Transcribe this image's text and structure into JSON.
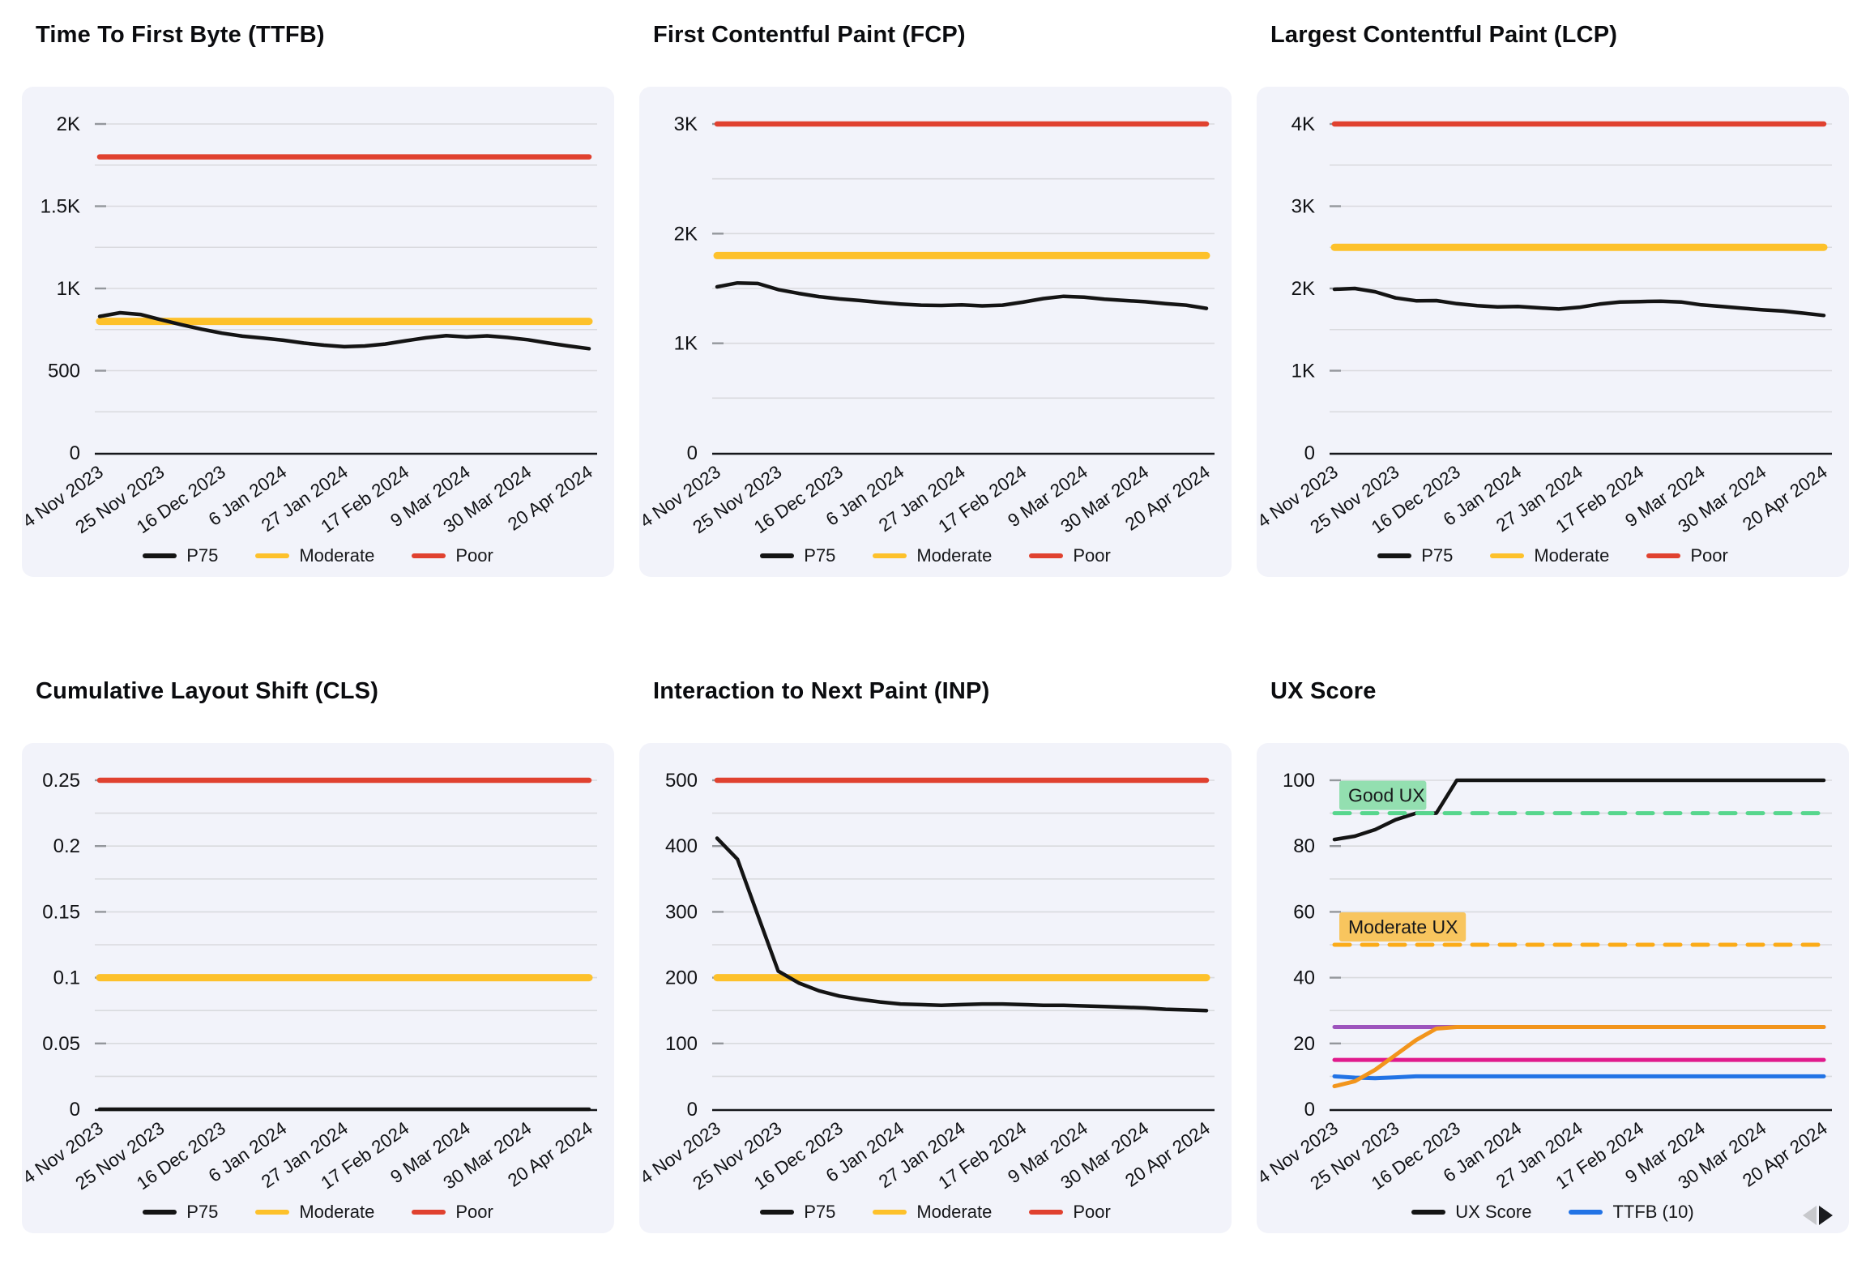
{
  "style": {
    "panel_bg": "#f2f3fa",
    "grid_color": "#d9dade",
    "tick_stub_color": "#94979c",
    "axis_color": "#15161a",
    "text_color": "#101114",
    "p75_color": "#141414",
    "moderate_color": "#fdc12b",
    "poor_color": "#e0412f"
  },
  "x_axis": {
    "tick_labels": [
      "4 Nov 2023",
      "25 Nov 2023",
      "16 Dec 2023",
      "6 Jan 2024",
      "27 Jan 2024",
      "17 Feb 2024",
      "9 Mar 2024",
      "30 Mar 2024",
      "20 Apr 2024"
    ],
    "tick_every": 3,
    "points_per_series": 25
  },
  "chart_data": [
    {
      "id": "ttfb",
      "type": "line",
      "title": "Time To First Byte (TTFB)",
      "y_max": 2000,
      "y_major_step": 500,
      "y_minor_step": 250,
      "y_tick_labels": [
        "0",
        "500",
        "1K",
        "1.5K",
        "2K"
      ],
      "thresholds": [
        {
          "name": "Moderate",
          "value": 800,
          "color": "#fdc12b",
          "width": 9
        },
        {
          "name": "Poor",
          "value": 1800,
          "color": "#e0412f",
          "width": 6.5
        }
      ],
      "series": [
        {
          "name": "P75",
          "color": "#141414",
          "width": 4.5,
          "values": [
            830,
            852,
            842,
            810,
            780,
            752,
            728,
            710,
            698,
            685,
            668,
            655,
            646,
            650,
            662,
            682,
            700,
            713,
            705,
            712,
            702,
            688,
            668,
            650,
            634
          ]
        }
      ],
      "legend": [
        {
          "label": "P75",
          "color": "#141414"
        },
        {
          "label": "Moderate",
          "color": "#fdc12b"
        },
        {
          "label": "Poor",
          "color": "#e0412f"
        }
      ]
    },
    {
      "id": "fcp",
      "type": "line",
      "title": "First Contentful Paint (FCP)",
      "y_max": 3000,
      "y_major_step": 1000,
      "y_minor_step": 500,
      "y_tick_labels": [
        "0",
        "1K",
        "2K",
        "3K"
      ],
      "thresholds": [
        {
          "name": "Moderate",
          "value": 1800,
          "color": "#fdc12b",
          "width": 9
        },
        {
          "name": "Poor",
          "value": 3000,
          "color": "#e0412f",
          "width": 6.5
        }
      ],
      "series": [
        {
          "name": "P75",
          "color": "#141414",
          "width": 4.5,
          "values": [
            1515,
            1550,
            1545,
            1490,
            1455,
            1425,
            1405,
            1390,
            1372,
            1358,
            1348,
            1345,
            1350,
            1341,
            1348,
            1375,
            1408,
            1428,
            1420,
            1402,
            1390,
            1379,
            1362,
            1348,
            1318
          ]
        }
      ],
      "legend": [
        {
          "label": "P75",
          "color": "#141414"
        },
        {
          "label": "Moderate",
          "color": "#fdc12b"
        },
        {
          "label": "Poor",
          "color": "#e0412f"
        }
      ]
    },
    {
      "id": "lcp",
      "type": "line",
      "title": "Largest Contentful Paint (LCP)",
      "y_max": 4000,
      "y_major_step": 1000,
      "y_minor_step": 500,
      "y_tick_labels": [
        "0",
        "1K",
        "2K",
        "3K",
        "4K"
      ],
      "thresholds": [
        {
          "name": "Moderate",
          "value": 2500,
          "color": "#fdc12b",
          "width": 9
        },
        {
          "name": "Poor",
          "value": 4000,
          "color": "#e0412f",
          "width": 6.5
        }
      ],
      "series": [
        {
          "name": "P75",
          "color": "#141414",
          "width": 4.5,
          "values": [
            1990,
            2000,
            1960,
            1885,
            1850,
            1852,
            1815,
            1790,
            1775,
            1780,
            1765,
            1750,
            1770,
            1810,
            1835,
            1840,
            1845,
            1835,
            1800,
            1780,
            1760,
            1740,
            1725,
            1700,
            1672
          ]
        }
      ],
      "legend": [
        {
          "label": "P75",
          "color": "#141414"
        },
        {
          "label": "Moderate",
          "color": "#fdc12b"
        },
        {
          "label": "Poor",
          "color": "#e0412f"
        }
      ]
    },
    {
      "id": "cls",
      "type": "line",
      "title": "Cumulative Layout Shift (CLS)",
      "y_max": 0.25,
      "y_major_step": 0.05,
      "y_minor_step": 0.025,
      "y_tick_labels": [
        "0",
        "0.05",
        "0.1",
        "0.15",
        "0.2",
        "0.25"
      ],
      "thresholds": [
        {
          "name": "Moderate",
          "value": 0.1,
          "color": "#fdc12b",
          "width": 9
        },
        {
          "name": "Poor",
          "value": 0.25,
          "color": "#e0412f",
          "width": 6.5
        }
      ],
      "series": [
        {
          "name": "P75",
          "color": "#141414",
          "width": 4.5,
          "values": [
            0,
            0,
            0,
            0,
            0,
            0,
            0,
            0,
            0,
            0,
            0,
            0,
            0,
            0,
            0,
            0,
            0,
            0,
            0,
            0,
            0,
            0,
            0,
            0,
            0
          ]
        }
      ],
      "legend": [
        {
          "label": "P75",
          "color": "#141414"
        },
        {
          "label": "Moderate",
          "color": "#fdc12b"
        },
        {
          "label": "Poor",
          "color": "#e0412f"
        }
      ]
    },
    {
      "id": "inp",
      "type": "line",
      "title": "Interaction to Next Paint (INP)",
      "y_max": 500,
      "y_major_step": 100,
      "y_minor_step": 50,
      "y_tick_labels": [
        "0",
        "100",
        "200",
        "300",
        "400",
        "500"
      ],
      "thresholds": [
        {
          "name": "Moderate",
          "value": 200,
          "color": "#fdc12b",
          "width": 9
        },
        {
          "name": "Poor",
          "value": 500,
          "color": "#e0412f",
          "width": 6.5
        }
      ],
      "series": [
        {
          "name": "P75",
          "color": "#141414",
          "width": 4.5,
          "values": [
            412,
            380,
            295,
            210,
            192,
            180,
            172,
            167,
            163,
            160,
            159,
            158,
            159,
            160,
            160,
            159,
            158,
            158,
            157,
            156,
            155,
            154,
            152,
            151,
            150
          ]
        }
      ],
      "legend": [
        {
          "label": "P75",
          "color": "#141414"
        },
        {
          "label": "Moderate",
          "color": "#fdc12b"
        },
        {
          "label": "Poor",
          "color": "#e0412f"
        }
      ]
    },
    {
      "id": "ux-score",
      "type": "line",
      "title": "UX Score",
      "y_max": 100,
      "y_major_step": 20,
      "y_minor_step": 10,
      "y_tick_labels": [
        "0",
        "20",
        "40",
        "60",
        "80",
        "100"
      ],
      "thresholds": [],
      "ref_lines": [
        {
          "label": "Good UX",
          "value": 90,
          "color": "#57d68d",
          "badge_bg": "#93dfb0"
        },
        {
          "label": "Moderate UX",
          "value": 50,
          "color": "#fbab18",
          "badge_bg": "#f8c55e"
        }
      ],
      "series": [
        {
          "name": "",
          "color": "#9d54bd",
          "width": 5,
          "values": [
            25,
            25,
            25,
            25,
            25,
            25,
            25,
            25,
            25,
            25,
            25,
            25,
            25,
            25,
            25,
            25,
            25,
            25,
            25,
            25,
            25,
            25,
            25,
            25,
            25
          ]
        },
        {
          "name": "",
          "color": "#e01a8c",
          "width": 5,
          "values": [
            15,
            15,
            15,
            15,
            15,
            15,
            15,
            15,
            15,
            15,
            15,
            15,
            15,
            15,
            15,
            15,
            15,
            15,
            15,
            15,
            15,
            15,
            15,
            15,
            15
          ]
        },
        {
          "name": "TTFB (10)",
          "color": "#2273e5",
          "width": 5,
          "values": [
            10,
            9.6,
            9.4,
            9.7,
            10,
            10,
            10,
            10,
            10,
            10,
            10,
            10,
            10,
            10,
            10,
            10,
            10,
            10,
            10,
            10,
            10,
            10,
            10,
            10,
            10
          ]
        },
        {
          "name": "",
          "color": "#f2951c",
          "width": 5,
          "values": [
            7,
            8.5,
            12,
            16.5,
            21,
            24.5,
            25,
            25,
            25,
            25,
            25,
            25,
            25,
            25,
            25,
            25,
            25,
            25,
            25,
            25,
            25,
            25,
            25,
            25,
            25
          ]
        },
        {
          "name": "UX Score",
          "color": "#141414",
          "width": 4.5,
          "values": [
            82,
            83,
            85,
            88,
            90,
            90,
            100,
            100,
            100,
            100,
            100,
            100,
            100,
            100,
            100,
            100,
            100,
            100,
            100,
            100,
            100,
            100,
            100,
            100,
            100
          ]
        }
      ],
      "legend": [
        {
          "label": "UX Score",
          "color": "#141414"
        },
        {
          "label": "TTFB (10)",
          "color": "#2273e5"
        }
      ],
      "pagination": {
        "prev": "previous-legend-page",
        "next": "next-legend-page"
      }
    }
  ]
}
